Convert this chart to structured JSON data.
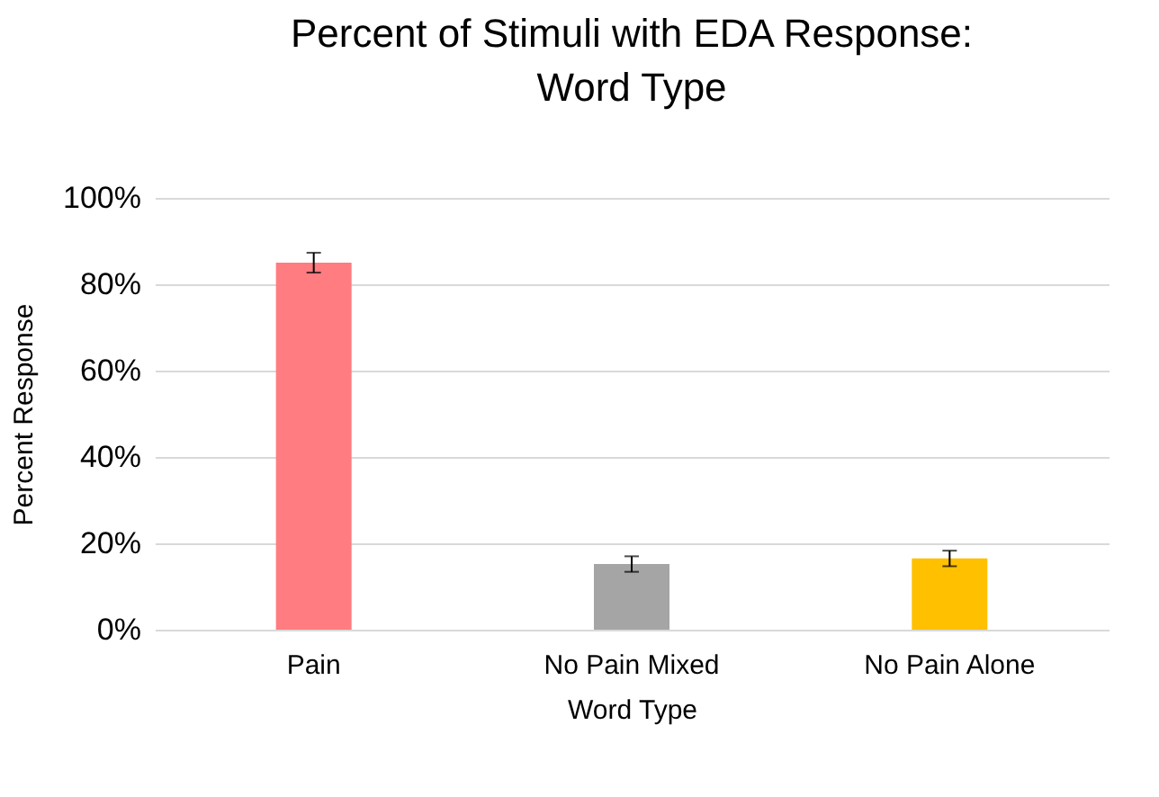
{
  "chart_data": {
    "type": "bar",
    "title": "Percent of Stimuli with EDA Response:\nWord Type",
    "xlabel": "Word Type",
    "ylabel": "Percent Response",
    "categories": [
      "Pain",
      "No Pain Mixed",
      "No Pain Alone"
    ],
    "values": [
      85,
      15.2,
      16.5
    ],
    "colors": [
      "#ff7c80",
      "#a5a5a5",
      "#ffc000"
    ],
    "errors": [
      2.3,
      1.8,
      1.8
    ],
    "ylim": [
      0,
      100
    ],
    "yticks": [
      {
        "value": 0,
        "label": "0%"
      },
      {
        "value": 20,
        "label": "20%"
      },
      {
        "value": 40,
        "label": "40%"
      },
      {
        "value": 60,
        "label": "60%"
      },
      {
        "value": 80,
        "label": "80%"
      },
      {
        "value": 100,
        "label": "100%"
      }
    ],
    "grid": "y"
  }
}
